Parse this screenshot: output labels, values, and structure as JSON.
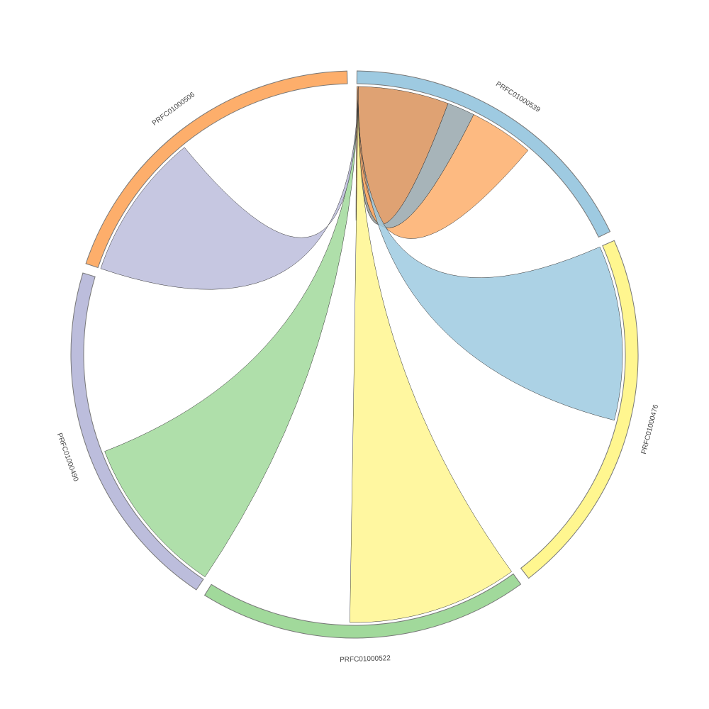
{
  "chart_data": {
    "type": "chord",
    "categories": [
      "PRFC01000539",
      "PRFC01000476",
      "PRFC01000522",
      "PRFC01000490",
      "PRFC01000506"
    ],
    "values": [
      64,
      76,
      68,
      73,
      70
    ],
    "colors": [
      "#9ecae1",
      "#fff68f",
      "#a1d99b",
      "#bcbddc",
      "#fdae6b"
    ],
    "links": [
      {
        "source": "PRFC01000539",
        "target": "PRFC01000539",
        "value": 20,
        "color": "#d9925a"
      },
      {
        "source": "PRFC01000539",
        "target": "PRFC01000539",
        "value": 6,
        "color": "#98a7ad"
      },
      {
        "source": "PRFC01000539",
        "target": "PRFC01000539",
        "value": 14,
        "color": "#fdae6b"
      },
      {
        "source": "PRFC01000476",
        "target": "PRFC01000539",
        "value": 38,
        "color": "#9ecae1"
      },
      {
        "source": "PRFC01000522",
        "target": "PRFC01000539",
        "value": 37,
        "color": "#fff68f"
      },
      {
        "source": "PRFC01000490",
        "target": "PRFC01000539",
        "value": 35,
        "color": "#a1d99b"
      },
      {
        "source": "PRFC01000506",
        "target": "PRFC01000539",
        "value": 32,
        "color": "#bcbddc"
      }
    ]
  }
}
